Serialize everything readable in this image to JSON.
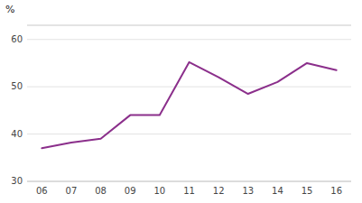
{
  "chart_data": {
    "type": "line",
    "y_label": "%",
    "categories": [
      "06",
      "07",
      "08",
      "09",
      "10",
      "11",
      "12",
      "13",
      "14",
      "15",
      "16"
    ],
    "values": [
      37.0,
      38.2,
      39.0,
      44.0,
      44.0,
      55.2,
      52.0,
      48.5,
      51.0,
      55.0,
      53.5
    ],
    "color": "#8b2f8b",
    "ylim": [
      30,
      63
    ],
    "yticks": [
      30,
      40,
      50,
      60
    ],
    "grid": true
  }
}
